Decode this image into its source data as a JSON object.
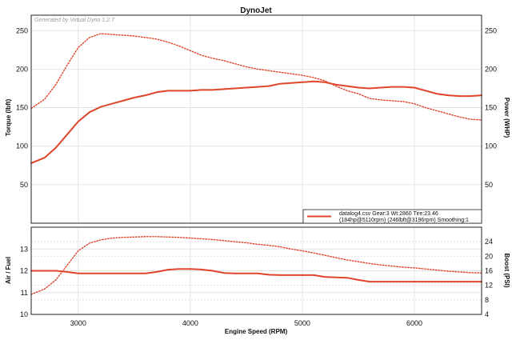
{
  "chart_data": {
    "type": "line",
    "title": "DynoJet",
    "watermark": "Generated by Virtual Dyno 1.2.7",
    "xlabel": "Engine Speed (RPM)",
    "xlim": [
      2580,
      6600
    ],
    "xticks": [
      "3000",
      "4000",
      "5000",
      "6000"
    ],
    "xtick_values": [
      3000,
      4000,
      5000,
      6000
    ],
    "colors": {
      "line": "#e0452a",
      "grid": "#dddddd",
      "frame": "#222222"
    },
    "legend": {
      "placement": "bottom-right of upper panel",
      "line1": "datalog4.csv Gear:3 Wt:2860 Tire:23.46",
      "line2": "(184hp@5110rpm) (246lbft@3196rpm) Smoothing:1"
    },
    "top": {
      "ylabel_left": "Torque (lbft)",
      "ylabel_right": "Power (WHP)",
      "ylim": [
        0,
        270
      ],
      "yticks": [
        "50",
        "100",
        "150",
        "200",
        "250"
      ],
      "ytick_values": [
        50,
        100,
        150,
        200,
        250
      ],
      "grid": true,
      "series": [
        {
          "role": "power",
          "style": "solid",
          "x": [
            2580,
            2700,
            2800,
            2900,
            3000,
            3100,
            3200,
            3300,
            3400,
            3500,
            3600,
            3700,
            3800,
            3900,
            4000,
            4100,
            4200,
            4300,
            4400,
            4500,
            4600,
            4700,
            4800,
            4900,
            5000,
            5100,
            5200,
            5300,
            5400,
            5500,
            5600,
            5700,
            5800,
            5900,
            6000,
            6100,
            6200,
            6300,
            6400,
            6500,
            6600
          ],
          "y": [
            78,
            85,
            98,
            115,
            132,
            144,
            151,
            155,
            159,
            163,
            166,
            170,
            172,
            172,
            172,
            173,
            173,
            174,
            175,
            176,
            177,
            178,
            181,
            182,
            183,
            184,
            183,
            180,
            178,
            176,
            175,
            176,
            177,
            177,
            176,
            172,
            168,
            166,
            165,
            165,
            166
          ]
        },
        {
          "role": "torque",
          "style": "dotted",
          "x": [
            2580,
            2700,
            2800,
            2900,
            3000,
            3100,
            3200,
            3300,
            3400,
            3500,
            3600,
            3700,
            3800,
            3900,
            4000,
            4100,
            4200,
            4300,
            4400,
            4500,
            4600,
            4700,
            4800,
            4900,
            5000,
            5100,
            5200,
            5300,
            5400,
            5500,
            5600,
            5700,
            5800,
            5900,
            6000,
            6100,
            6200,
            6300,
            6400,
            6500,
            6600
          ],
          "y": [
            149,
            161,
            180,
            205,
            228,
            241,
            246,
            245,
            244,
            243,
            241,
            239,
            235,
            230,
            224,
            218,
            214,
            211,
            207,
            203,
            200,
            198,
            196,
            194,
            192,
            189,
            185,
            178,
            172,
            168,
            162,
            160,
            159,
            158,
            155,
            150,
            146,
            142,
            138,
            135,
            134
          ]
        }
      ]
    },
    "bottom": {
      "ylabel_left": "Air / Fuel",
      "ylabel_right": "Boost (PSI)",
      "ylim_left": [
        10,
        14
      ],
      "yticks_left": [
        "10",
        "11",
        "12",
        "13"
      ],
      "ytick_values_left": [
        10,
        11,
        12,
        13
      ],
      "ylim_right": [
        4,
        28
      ],
      "yticks_right": [
        "4",
        "8",
        "12",
        "16",
        "20",
        "24"
      ],
      "ytick_values_right": [
        4,
        8,
        12,
        16,
        20,
        24
      ],
      "grid": true,
      "series": [
        {
          "role": "air-fuel",
          "axis": "left",
          "style": "solid",
          "x": [
            2580,
            2700,
            2800,
            2900,
            3000,
            3200,
            3400,
            3600,
            3700,
            3800,
            3900,
            4000,
            4100,
            4200,
            4300,
            4400,
            4500,
            4600,
            4700,
            4800,
            4900,
            5000,
            5100,
            5200,
            5300,
            5400,
            5500,
            5600,
            5700,
            5800,
            6000,
            6200,
            6400,
            6600
          ],
          "y": [
            12.0,
            12.0,
            12.0,
            11.95,
            11.88,
            11.88,
            11.88,
            11.88,
            11.95,
            12.05,
            12.08,
            12.08,
            12.06,
            12.0,
            11.9,
            11.88,
            11.88,
            11.88,
            11.82,
            11.8,
            11.8,
            11.8,
            11.8,
            11.72,
            11.7,
            11.68,
            11.58,
            11.5,
            11.5,
            11.5,
            11.5,
            11.5,
            11.5,
            11.5
          ]
        },
        {
          "role": "boost",
          "axis": "right",
          "style": "dotted",
          "x": [
            2580,
            2700,
            2800,
            2900,
            3000,
            3100,
            3200,
            3300,
            3400,
            3500,
            3600,
            3700,
            3800,
            3900,
            4000,
            4100,
            4200,
            4300,
            4400,
            4500,
            4600,
            4700,
            4800,
            4900,
            5000,
            5100,
            5200,
            5300,
            5400,
            5500,
            5600,
            5700,
            5800,
            5900,
            6000,
            6100,
            6200,
            6300,
            6400,
            6500,
            6600
          ],
          "y": [
            9.5,
            11.0,
            13.5,
            17.5,
            21.5,
            23.6,
            24.5,
            25.0,
            25.2,
            25.3,
            25.4,
            25.4,
            25.3,
            25.2,
            25.0,
            24.8,
            24.6,
            24.3,
            24.0,
            23.7,
            23.3,
            23.0,
            22.6,
            22.0,
            21.5,
            20.9,
            20.3,
            19.6,
            19.0,
            18.5,
            18.0,
            17.6,
            17.3,
            17.0,
            16.8,
            16.5,
            16.2,
            15.9,
            15.7,
            15.5,
            15.4
          ]
        }
      ]
    }
  }
}
